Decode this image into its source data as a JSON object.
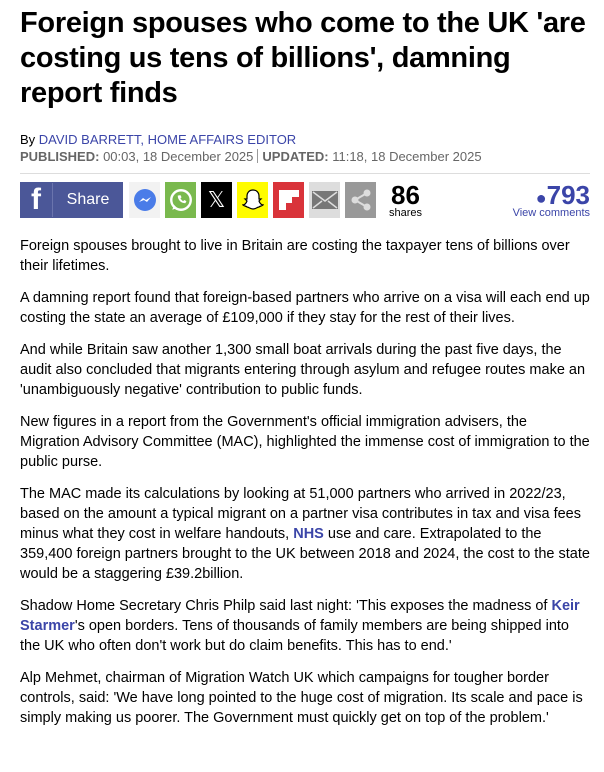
{
  "headline": "Foreign spouses who come to the UK 'are costing us tens of billions', damning report finds",
  "byline": {
    "prefix": "By ",
    "author": "DAVID BARRETT, HOME AFFAIRS EDITOR"
  },
  "dates": {
    "published_label": "PUBLISHED:",
    "published": " 00:03, 18 December 2025",
    "updated_label": "UPDATED:",
    "updated": " 11:18, 18 December 2025"
  },
  "share": {
    "fb_label": "Share",
    "count": "86",
    "count_label": "shares",
    "comments": "793",
    "comments_label": "View comments",
    "colors": {
      "facebook": "#4b5798",
      "messenger": "#f2f2f2",
      "whatsapp": "#7ab94e",
      "x": "#000000",
      "snapchat": "#fffc00",
      "flipboard": "#d9333a",
      "email": "#dddddd",
      "more": "#999999",
      "link": "#3b45a8"
    }
  },
  "paragraphs": [
    {
      "t": "Foreign spouses brought to live in Britain are costing the taxpayer tens of billions over their lifetimes."
    },
    {
      "t": "A damning report found that foreign-based partners who arrive on a visa will each end up costing the state an average of £109,000 if they stay for the rest of their lives."
    },
    {
      "t": "And while Britain saw another 1,300 small boat arrivals during the past five days, the audit also concluded that migrants entering through asylum and refugee routes make an 'unambiguously negative' contribution to public funds."
    },
    {
      "t": "New figures in a report from the Government's official immigration advisers, the Migration Advisory Committee (MAC), highlighted the immense cost of immigration to the public purse."
    },
    {
      "a": "The MAC made its calculations by looking at 51,000 partners who arrived in 2022/23, based on the amount a typical migrant on a partner visa contributes in tax and visa fees minus what they cost in welfare handouts, ",
      "link": "NHS",
      "b": " use and care. Extrapolated to the 359,400 foreign partners brought to the UK between 2018 and 2024, the cost to the state would be a staggering £39.2billion."
    },
    {
      "a": "Shadow Home Secretary Chris Philp said last night: 'This exposes the madness of ",
      "link": "Keir Starmer",
      "b": "'s open borders. Tens of thousands of family members are being shipped into the UK who often don't work but do claim benefits. This has to end.'"
    },
    {
      "t": "Alp Mehmet, chairman of Migration Watch UK which campaigns for tougher border controls, said: 'We have long pointed to the huge cost of migration. Its scale and pace is simply making us poorer. The Government must quickly get on top of the problem.'"
    }
  ]
}
